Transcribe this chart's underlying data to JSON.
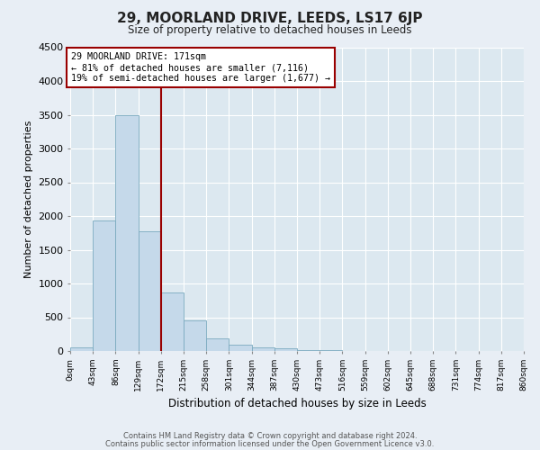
{
  "title": "29, MOORLAND DRIVE, LEEDS, LS17 6JP",
  "subtitle": "Size of property relative to detached houses in Leeds",
  "xlabel": "Distribution of detached houses by size in Leeds",
  "ylabel": "Number of detached properties",
  "bar_color": "#c5d9ea",
  "bar_edgecolor": "#7aaabf",
  "bg_color": "#dce8f0",
  "grid_color": "#ffffff",
  "bin_edges": [
    0,
    43,
    86,
    129,
    172,
    215,
    258,
    301,
    344,
    387,
    430,
    473,
    516,
    559,
    602,
    645,
    688,
    731,
    774,
    817,
    860
  ],
  "bin_labels": [
    "0sqm",
    "43sqm",
    "86sqm",
    "129sqm",
    "172sqm",
    "215sqm",
    "258sqm",
    "301sqm",
    "344sqm",
    "387sqm",
    "430sqm",
    "473sqm",
    "516sqm",
    "559sqm",
    "602sqm",
    "645sqm",
    "688sqm",
    "731sqm",
    "774sqm",
    "817sqm",
    "860sqm"
  ],
  "bar_heights": [
    50,
    1930,
    3490,
    1780,
    870,
    460,
    185,
    100,
    60,
    35,
    20,
    10,
    0,
    0,
    0,
    0,
    0,
    0,
    0,
    0
  ],
  "ylim": [
    0,
    4500
  ],
  "yticks": [
    0,
    500,
    1000,
    1500,
    2000,
    2500,
    3000,
    3500,
    4000,
    4500
  ],
  "vline_x": 172,
  "vline_color": "#990000",
  "annotation_line1": "29 MOORLAND DRIVE: 171sqm",
  "annotation_line2": "← 81% of detached houses are smaller (7,116)",
  "annotation_line3": "19% of semi-detached houses are larger (1,677) →",
  "annotation_box_edgecolor": "#990000",
  "footer1": "Contains HM Land Registry data © Crown copyright and database right 2024.",
  "footer2": "Contains public sector information licensed under the Open Government Licence v3.0."
}
